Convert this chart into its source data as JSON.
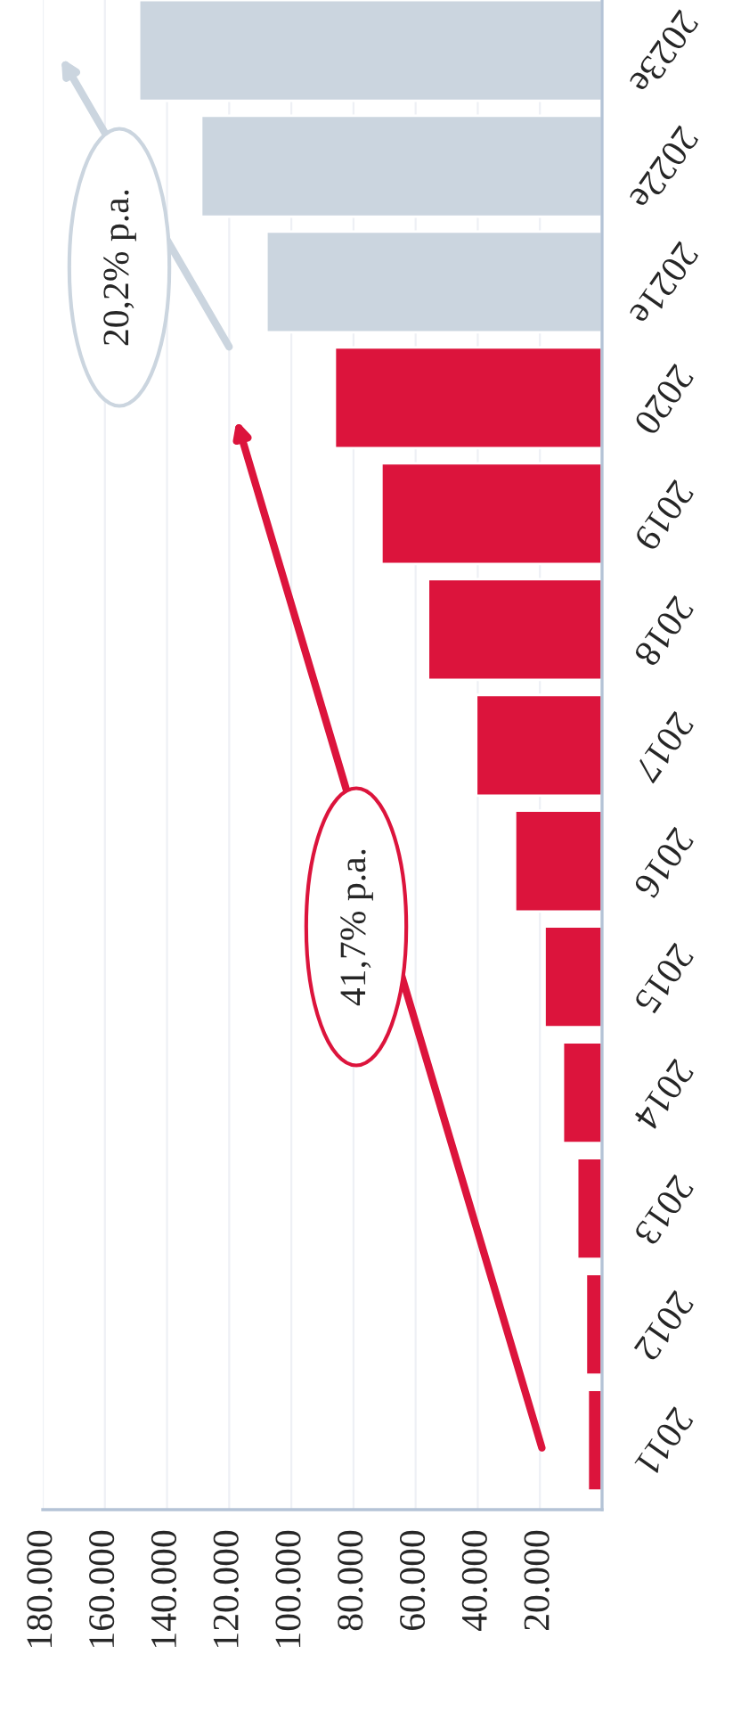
{
  "chart_data": {
    "type": "bar",
    "orientation": "horizontal",
    "categories": [
      "2023e",
      "2022e",
      "2021e",
      "2020",
      "2019",
      "2018",
      "2017",
      "2016",
      "2015",
      "2014",
      "2013",
      "2012",
      "2011"
    ],
    "values": [
      149000,
      129000,
      108000,
      86000,
      71000,
      56000,
      40500,
      28000,
      18500,
      12600,
      8000,
      5200,
      4600
    ],
    "colors": [
      "#cbd5df",
      "#cbd5df",
      "#cbd5df",
      "#dc143c",
      "#dc143c",
      "#dc143c",
      "#dc143c",
      "#dc143c",
      "#dc143c",
      "#dc143c",
      "#dc143c",
      "#dc143c",
      "#dc143c"
    ],
    "xlim": [
      180000,
      0
    ],
    "xticks": [
      {
        "value": 20000,
        "label": "20.000"
      },
      {
        "value": 40000,
        "label": "40.000"
      },
      {
        "value": 60000,
        "label": "60.000"
      },
      {
        "value": 80000,
        "label": "80.000"
      },
      {
        "value": 100000,
        "label": "100.000"
      },
      {
        "value": 120000,
        "label": "120.000"
      },
      {
        "value": 140000,
        "label": "140.000"
      },
      {
        "value": 160000,
        "label": "160.000"
      },
      {
        "value": 180000,
        "label": "180.000"
      }
    ],
    "annotations": [
      "41,7% p.a.",
      "20,2% p.a."
    ],
    "grid": "x"
  }
}
